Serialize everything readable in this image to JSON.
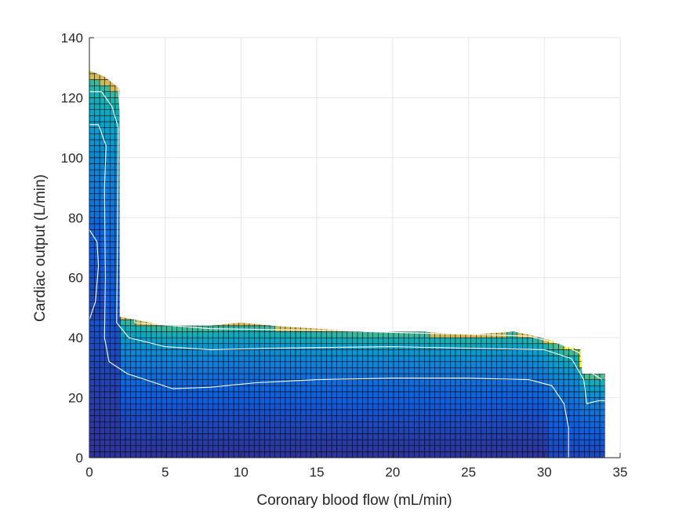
{
  "chart_data": {
    "type": "heatmap",
    "title": "",
    "xlabel": "Coronary blood flow (mL/min)",
    "ylabel": "Cardiac output (L/min)",
    "xlim": [
      0,
      35
    ],
    "ylim": [
      0,
      140
    ],
    "x_ticks": [
      "0",
      "5",
      "10",
      "15",
      "20",
      "25",
      "30",
      "35"
    ],
    "y_ticks": [
      "0",
      "20",
      "40",
      "60",
      "80",
      "100",
      "120",
      "140"
    ],
    "grid": true,
    "colormap": "parula",
    "cell_size": {
      "dx": 0.34,
      "dy": 2
    },
    "region_top_boundary": [
      {
        "x": 0,
        "y": 129
      },
      {
        "x": 1,
        "y": 127
      },
      {
        "x": 1.99,
        "y": 123
      },
      {
        "x": 2.0,
        "y": 47
      },
      {
        "x": 3,
        "y": 46
      },
      {
        "x": 5,
        "y": 44
      },
      {
        "x": 8,
        "y": 44
      },
      {
        "x": 10,
        "y": 45
      },
      {
        "x": 12,
        "y": 44
      },
      {
        "x": 15,
        "y": 43
      },
      {
        "x": 18,
        "y": 42
      },
      {
        "x": 22,
        "y": 42
      },
      {
        "x": 25,
        "y": 41
      },
      {
        "x": 28,
        "y": 42
      },
      {
        "x": 29,
        "y": 41
      },
      {
        "x": 30.5,
        "y": 39
      },
      {
        "x": 31.5,
        "y": 37
      },
      {
        "x": 32.4,
        "y": 36
      },
      {
        "x": 32.5,
        "y": 28
      },
      {
        "x": 34,
        "y": 28
      }
    ],
    "contour_levels": [
      [
        {
          "x": 0,
          "y": 46
        },
        {
          "x": 0.4,
          "y": 52
        },
        {
          "x": 0.6,
          "y": 64
        },
        {
          "x": 0.5,
          "y": 72
        },
        {
          "x": 0,
          "y": 76
        }
      ],
      [
        {
          "x": 0,
          "y": 111
        },
        {
          "x": 0.6,
          "y": 111
        },
        {
          "x": 1.1,
          "y": 104
        },
        {
          "x": 1.0,
          "y": 90
        },
        {
          "x": 1.05,
          "y": 60
        },
        {
          "x": 1.0,
          "y": 40
        },
        {
          "x": 1.3,
          "y": 32
        },
        {
          "x": 2.5,
          "y": 28
        },
        {
          "x": 5.5,
          "y": 23
        },
        {
          "x": 8,
          "y": 23.5
        },
        {
          "x": 11,
          "y": 25
        },
        {
          "x": 15,
          "y": 26
        },
        {
          "x": 20,
          "y": 26.5
        },
        {
          "x": 25,
          "y": 26.5
        },
        {
          "x": 29,
          "y": 26
        },
        {
          "x": 30.5,
          "y": 24
        },
        {
          "x": 31.3,
          "y": 18
        },
        {
          "x": 31.6,
          "y": 10
        },
        {
          "x": 31.6,
          "y": 0
        }
      ],
      [
        {
          "x": 0,
          "y": 122
        },
        {
          "x": 0.8,
          "y": 122
        },
        {
          "x": 1.5,
          "y": 117
        },
        {
          "x": 1.9,
          "y": 110
        },
        {
          "x": 1.85,
          "y": 70
        },
        {
          "x": 1.8,
          "y": 45
        },
        {
          "x": 2.6,
          "y": 40
        },
        {
          "x": 5,
          "y": 37
        },
        {
          "x": 8,
          "y": 36
        },
        {
          "x": 12,
          "y": 36.5
        },
        {
          "x": 20,
          "y": 37
        },
        {
          "x": 25,
          "y": 36.5
        },
        {
          "x": 30,
          "y": 36
        },
        {
          "x": 31.8,
          "y": 33
        },
        {
          "x": 32.6,
          "y": 26
        },
        {
          "x": 32.8,
          "y": 18
        },
        {
          "x": 33.6,
          "y": 19
        },
        {
          "x": 34,
          "y": 19
        }
      ],
      [
        {
          "x": 1.6,
          "y": 127
        },
        {
          "x": 1.9,
          "y": 124
        },
        {
          "x": 3,
          "y": 45
        },
        {
          "x": 8,
          "y": 43
        },
        {
          "x": 15,
          "y": 42.5
        },
        {
          "x": 22,
          "y": 41.5
        },
        {
          "x": 26,
          "y": 41
        },
        {
          "x": 29,
          "y": 40.5
        },
        {
          "x": 31,
          "y": 38
        },
        {
          "x": 32.3,
          "y": 35
        },
        {
          "x": 33.2,
          "y": 28
        },
        {
          "x": 33.8,
          "y": 26
        }
      ]
    ]
  }
}
